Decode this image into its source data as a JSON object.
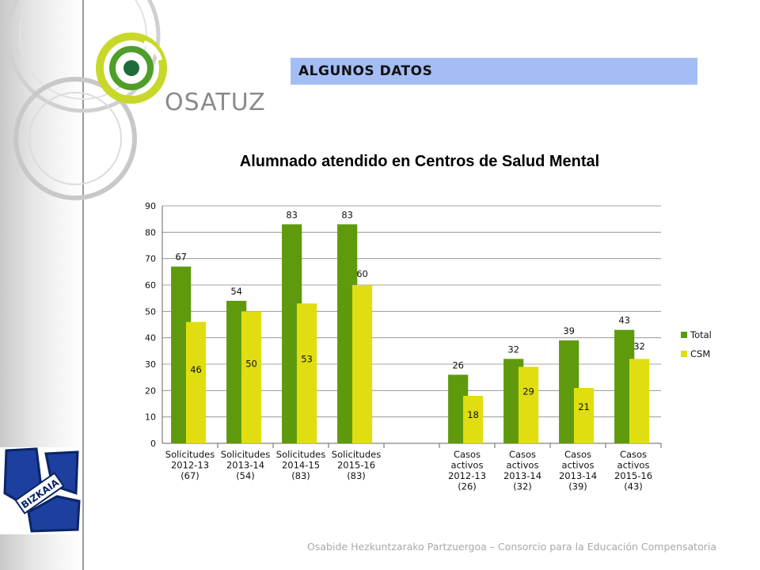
{
  "header": {
    "label": "ALGUNOS DATOS"
  },
  "logo": {
    "brand": "OSATUZ"
  },
  "bizkaia_logo": {
    "text": "BIZKAIA"
  },
  "footer": {
    "text": "Osabide Hezkuntzarako Partzuergoa – Consorcio para la Educación Compensatoria"
  },
  "colors": {
    "total": "#5f9a0d",
    "csm": "#e0de10",
    "header_bg": "#a4bdf4"
  },
  "chart_data": {
    "type": "bar",
    "title": "Alumnado atendido en Centros de Salud Mental",
    "xlabel": "",
    "ylabel": "",
    "ylim": [
      0,
      90
    ],
    "yticks": [
      0,
      10,
      20,
      30,
      40,
      50,
      60,
      70,
      80,
      90
    ],
    "grid": true,
    "legend": "right",
    "categories": [
      [
        "Solicitudes",
        "2012-13",
        "(67)"
      ],
      [
        "Solicitudes",
        "2013-14",
        "(54)"
      ],
      [
        "Solicitudes",
        "2014-15",
        "(83)"
      ],
      [
        "Solicitudes",
        "2015-16",
        "(83)"
      ],
      [
        "",
        "",
        ""
      ],
      [
        "Casos",
        "activos",
        "2012-13",
        "(26)"
      ],
      [
        "Casos",
        "activos",
        "2013-14",
        "(32)"
      ],
      [
        "Casos",
        "activos",
        "2013-14",
        "(39)"
      ],
      [
        "Casos",
        "activos",
        "2015-16",
        "(43)"
      ]
    ],
    "series": [
      {
        "name": "Total",
        "color": "#5f9a0d",
        "values": [
          67,
          54,
          83,
          83,
          null,
          26,
          32,
          39,
          43
        ]
      },
      {
        "name": "CSM",
        "color": "#e0de10",
        "values": [
          46,
          50,
          53,
          60,
          null,
          18,
          29,
          21,
          32
        ]
      }
    ]
  }
}
